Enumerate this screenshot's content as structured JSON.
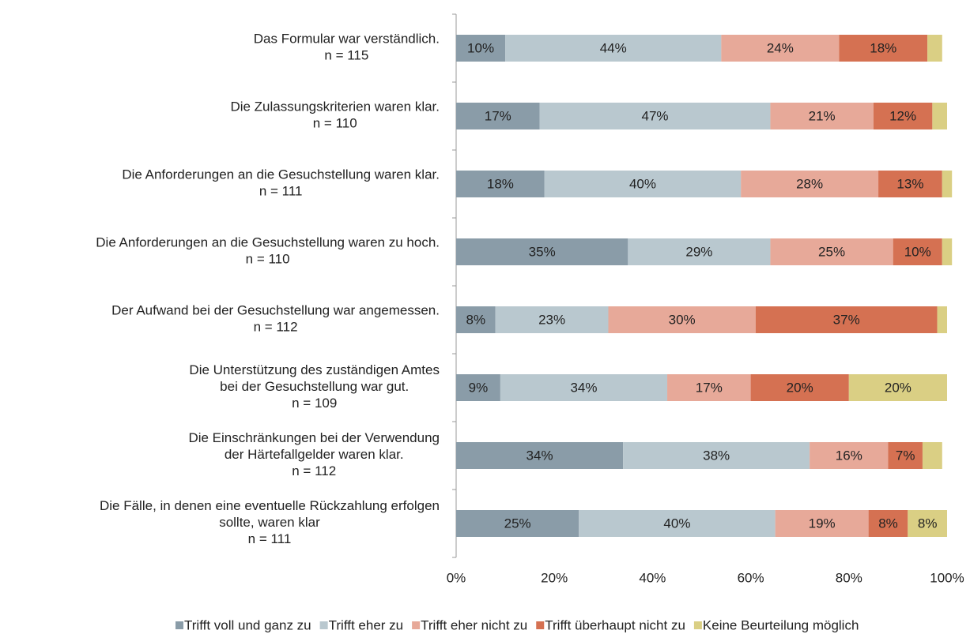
{
  "chart_data": {
    "type": "stacked_bar_horizontal",
    "categories": [
      [
        "Das Formular war verständlich.",
        "n = 115"
      ],
      [
        "Die Zulassungskriterien waren klar.",
        "n = 110"
      ],
      [
        "Die Anforderungen an die Gesuchstellung waren klar.",
        "n = 111"
      ],
      [
        "Die Anforderungen an die Gesuchstellung waren zu hoch.",
        "n = 110"
      ],
      [
        "Der Aufwand bei der Gesuchstellung war angemessen.",
        "n = 112"
      ],
      [
        "Die Unterstützung des zuständigen Amtes",
        "bei der Gesuchstellung war gut.",
        "n = 109"
      ],
      [
        "Die Einschränkungen bei der Verwendung",
        "der Härtefallgelder waren klar.",
        "n = 112"
      ],
      [
        "Die Fälle, in denen eine eventuelle Rückzahlung erfolgen",
        "sollte, waren klar",
        "n = 111"
      ]
    ],
    "series": [
      {
        "name": "Trifft voll und ganz zu",
        "color": "#8a9ca8",
        "values": [
          10,
          17,
          18,
          35,
          8,
          9,
          34,
          25
        ],
        "value_labels": [
          "10%",
          "17%",
          "18%",
          "35%",
          "8%",
          "9%",
          "34%",
          "25%"
        ]
      },
      {
        "name": "Trifft eher zu",
        "color": "#b9c8cf",
        "values": [
          44,
          47,
          40,
          29,
          23,
          34,
          38,
          40
        ],
        "value_labels": [
          "44%",
          "47%",
          "40%",
          "29%",
          "23%",
          "34%",
          "38%",
          "40%"
        ]
      },
      {
        "name": "Trifft eher nicht zu",
        "color": "#e7a999",
        "values": [
          24,
          21,
          28,
          25,
          30,
          17,
          16,
          19
        ],
        "value_labels": [
          "24%",
          "21%",
          "28%",
          "25%",
          "30%",
          "17%",
          "16%",
          "19%"
        ]
      },
      {
        "name": "Trifft überhaupt nicht zu",
        "color": "#d57152",
        "values": [
          18,
          12,
          13,
          10,
          37,
          20,
          7,
          8
        ],
        "value_labels": [
          "18%",
          "12%",
          "13%",
          "10%",
          "37%",
          "20%",
          "7%",
          "8%"
        ]
      },
      {
        "name": "Keine Beurteilung möglich",
        "color": "#dacf84",
        "values": [
          3,
          3,
          2,
          2,
          2,
          20,
          4,
          8
        ],
        "value_labels": [
          null,
          null,
          null,
          null,
          null,
          "20%",
          null,
          "8%"
        ]
      }
    ],
    "xlim": [
      0,
      100
    ],
    "xticks": [
      {
        "value": 0,
        "label": "0%"
      },
      {
        "value": 20,
        "label": "20%"
      },
      {
        "value": 40,
        "label": "40%"
      },
      {
        "value": 60,
        "label": "60%"
      },
      {
        "value": 80,
        "label": "80%"
      },
      {
        "value": 100,
        "label": "100%"
      }
    ],
    "legend": "bottom"
  }
}
